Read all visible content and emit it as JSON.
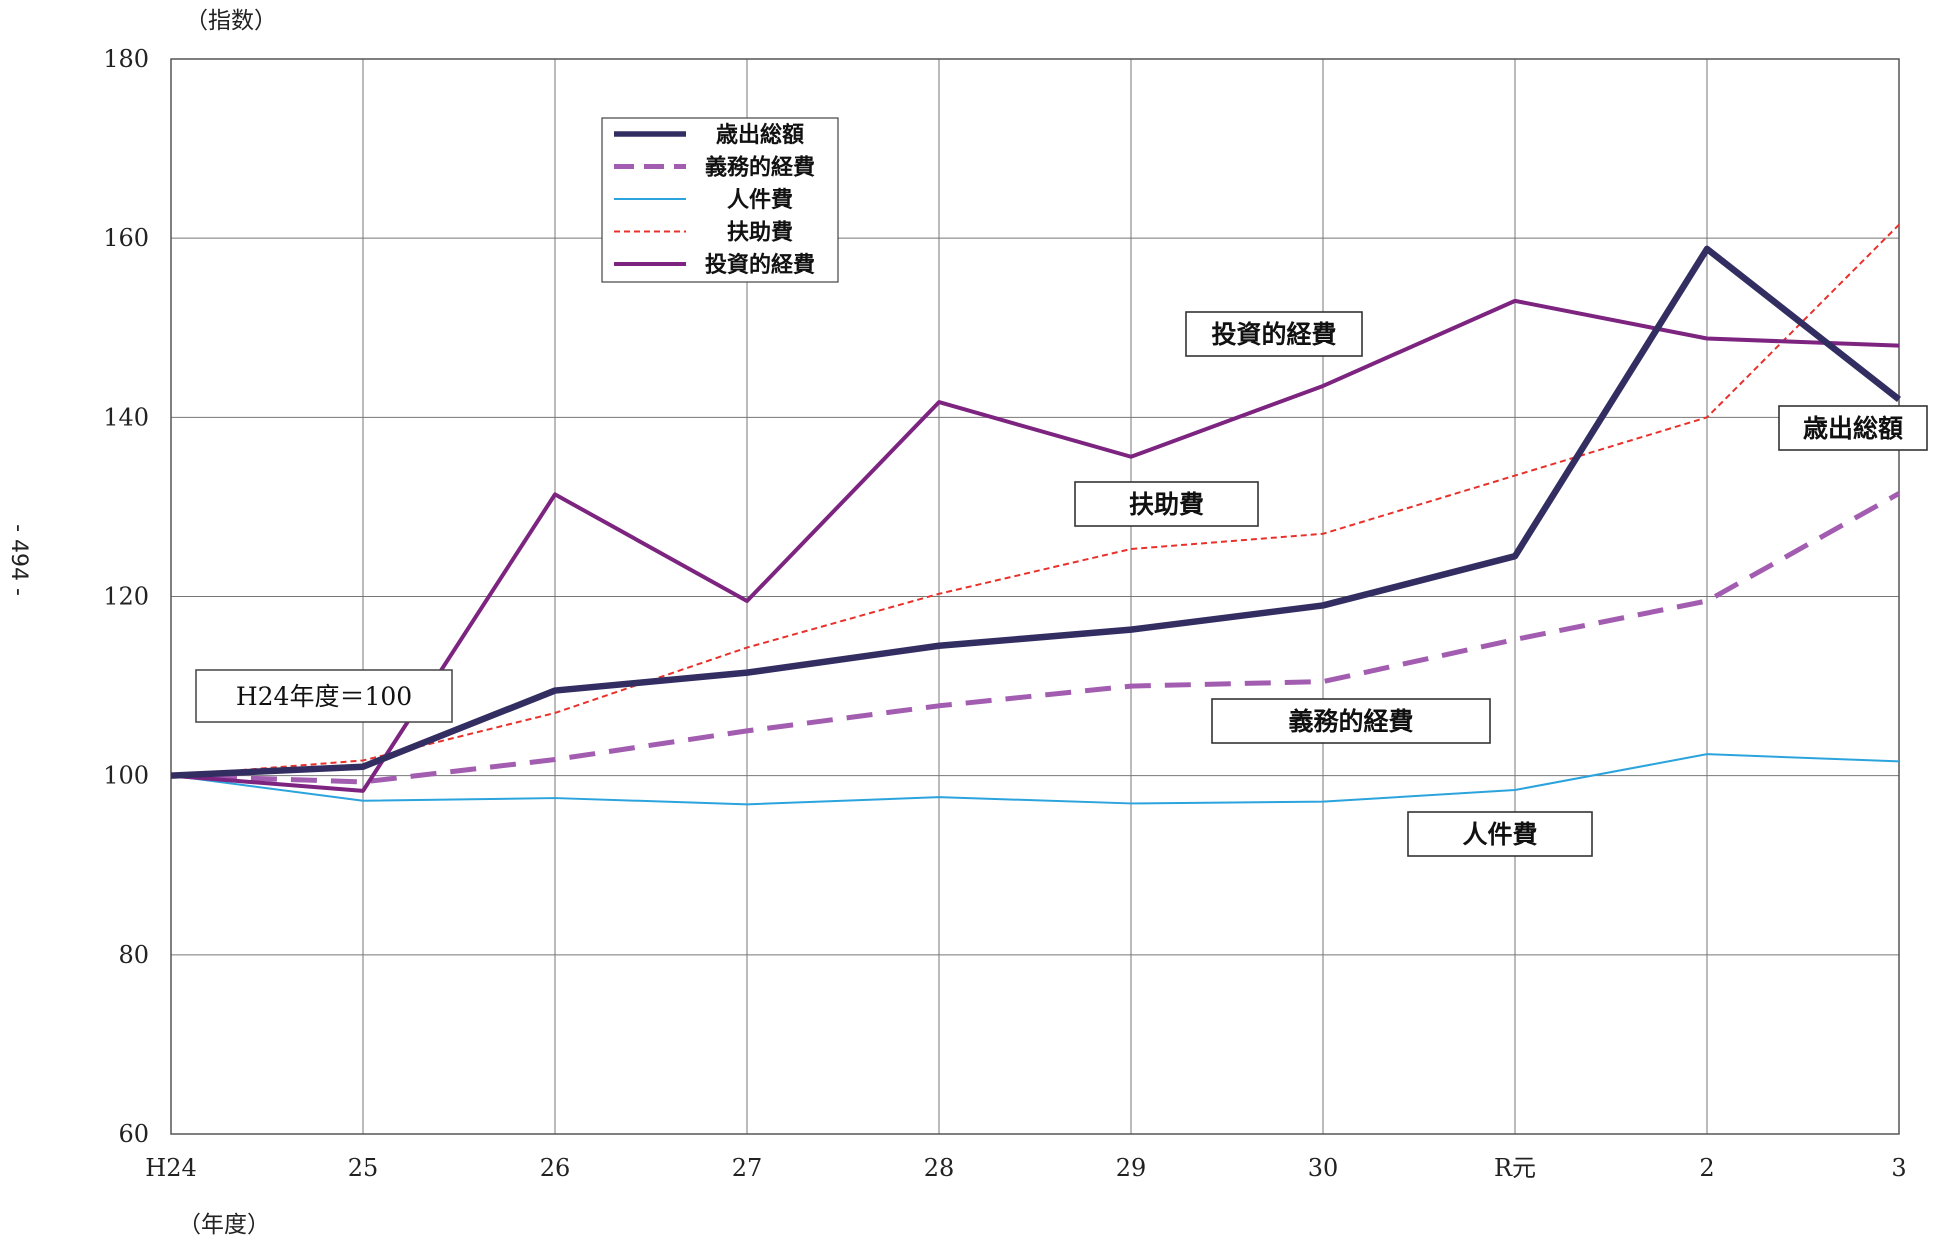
{
  "page_number": "- 494 -",
  "base_note": "H24年度＝100",
  "chart_data": {
    "type": "line",
    "categories": [
      "H24",
      "25",
      "26",
      "27",
      "28",
      "29",
      "30",
      "R元",
      "2",
      "3"
    ],
    "ylabel": "（指数）",
    "xlabel": "（年度）",
    "ylim": [
      60,
      180
    ],
    "yticks": [
      60,
      80,
      100,
      120,
      140,
      160,
      180
    ],
    "grid": true,
    "legend_position": "top-center",
    "series": [
      {
        "name": "歳出総額",
        "color": "#332e62",
        "style": "solid-thick",
        "values": [
          100,
          101,
          109.5,
          111.5,
          114.5,
          116.3,
          119,
          124.5,
          158.8,
          142
        ]
      },
      {
        "name": "義務的経費",
        "color": "#a35db0",
        "style": "dashed-thick",
        "values": [
          100,
          99.3,
          101.8,
          105,
          107.8,
          110,
          110.5,
          115.2,
          119.5,
          131.5
        ]
      },
      {
        "name": "人件費",
        "color": "#2ba3dc",
        "style": "solid-thin",
        "values": [
          100,
          97.2,
          97.5,
          96.8,
          97.6,
          96.9,
          97.1,
          98.4,
          102.4,
          101.6
        ]
      },
      {
        "name": "扶助費",
        "color": "#e8312b",
        "style": "dotted-thin",
        "values": [
          100,
          101.7,
          107,
          114.3,
          120.3,
          125.3,
          127,
          133.5,
          140,
          161.5
        ]
      },
      {
        "name": "投資的経費",
        "color": "#7c2480",
        "style": "solid-medium",
        "values": [
          100,
          98.3,
          131.4,
          119.5,
          141.7,
          135.6,
          143.5,
          153,
          148.8,
          148
        ]
      }
    ],
    "callouts": [
      {
        "series": "投資的経費",
        "text": "投資的経費"
      },
      {
        "series": "扶助費",
        "text": "扶助費"
      },
      {
        "series": "歳出総額",
        "text": "歳出総額"
      },
      {
        "series": "義務的経費",
        "text": "義務的経費"
      },
      {
        "series": "人件費",
        "text": "人件費"
      }
    ]
  }
}
